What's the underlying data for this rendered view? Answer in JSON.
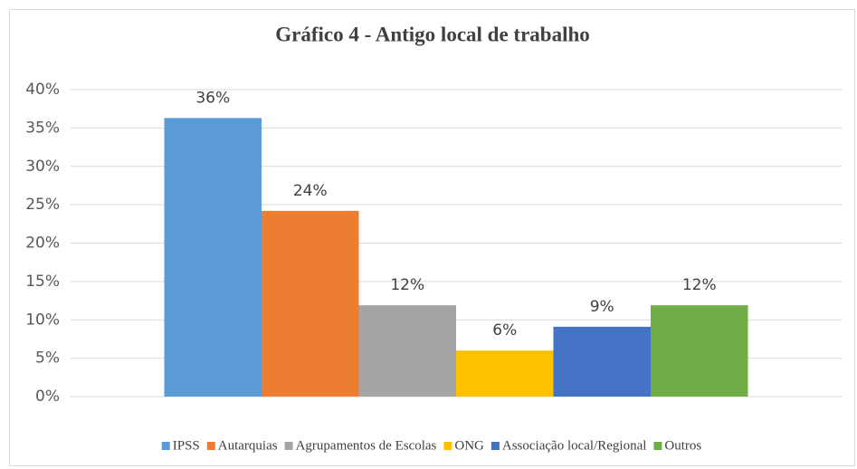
{
  "chart_data": {
    "type": "bar",
    "title": "Gráfico 4 - Antigo local de trabalho",
    "series": [
      {
        "name": "IPSS",
        "color": "#5b9bd5",
        "values": [
          36.3
        ],
        "value_labels": [
          "36%"
        ]
      },
      {
        "name": "Autarquias",
        "color": "#ed7d31",
        "values": [
          24.2
        ],
        "value_labels": [
          "24%"
        ]
      },
      {
        "name": "Agrupamentos de Escolas",
        "color": "#a5a5a5",
        "values": [
          11.9
        ],
        "value_labels": [
          "12%"
        ]
      },
      {
        "name": "ONG",
        "color": "#ffc000",
        "values": [
          6.0
        ],
        "value_labels": [
          "6%"
        ]
      },
      {
        "name": "Associação local/Regional",
        "color": "#4472c4",
        "values": [
          9.1
        ],
        "value_labels": [
          "9%"
        ]
      },
      {
        "name": "Outros",
        "color": "#70ad47",
        "values": [
          11.9
        ],
        "value_labels": [
          "12%"
        ]
      }
    ],
    "ylim": [
      0,
      40
    ],
    "yticks": [
      {
        "value": 0,
        "label": "0%"
      },
      {
        "value": 5,
        "label": "5%"
      },
      {
        "value": 10,
        "label": "10%"
      },
      {
        "value": 15,
        "label": "15%"
      },
      {
        "value": 20,
        "label": "20%"
      },
      {
        "value": 25,
        "label": "25%"
      },
      {
        "value": 30,
        "label": "30%"
      },
      {
        "value": 35,
        "label": "35%"
      },
      {
        "value": 40,
        "label": "40%"
      }
    ],
    "grid": true,
    "legend": "bottom"
  }
}
